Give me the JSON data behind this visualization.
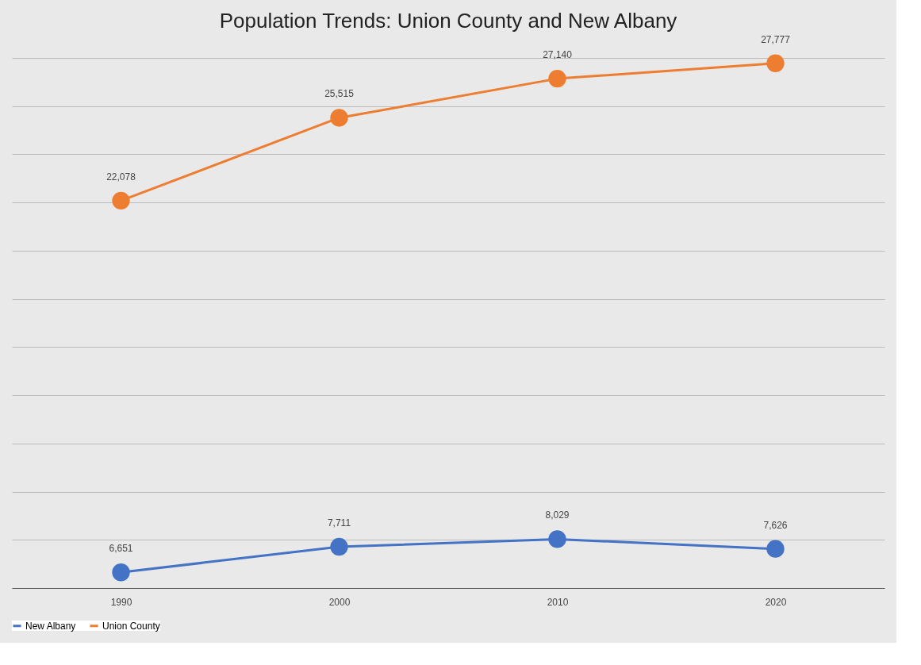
{
  "chart_data": {
    "type": "line",
    "title": "Population Trends: Union County and New Albany",
    "categories": [
      "1990",
      "2000",
      "2010",
      "2020"
    ],
    "series": [
      {
        "name": "New Albany",
        "color": "#4472c4",
        "values": [
          6651,
          7711,
          8029,
          7626
        ],
        "value_labels": [
          "6,651",
          "7,711",
          "8,029",
          "7,626"
        ]
      },
      {
        "name": "Union County",
        "color": "#ed7d31",
        "values": [
          22078,
          25515,
          27140,
          27777
        ],
        "value_labels": [
          "22,078",
          "25,515",
          "27,140",
          "27,777"
        ]
      }
    ],
    "tick_labels": "x",
    "grid": "y",
    "legend": "bottom",
    "marker": "circle",
    "line_style": "solid"
  }
}
